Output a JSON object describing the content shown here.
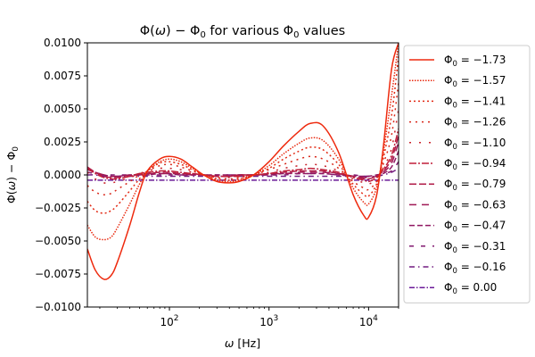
{
  "chart_data": {
    "type": "line",
    "title": "Φ(ω) − Φ₀ for various Φ₀ values",
    "title_parts": {
      "before": "Φ(",
      "omega": "ω",
      "mid": ") − Φ",
      "sub": "0",
      "after": " for various Φ",
      "sub2": "0",
      "tail": " values"
    },
    "xlabel": "ω [Hz]",
    "ylabel": "Φ(ω) − Φ₀",
    "x_scale": "log",
    "xlim": [
      15,
      20000
    ],
    "ylim": [
      -0.01,
      0.01
    ],
    "x_ticks": [
      {
        "value": 100,
        "base": "10",
        "exp": "2"
      },
      {
        "value": 1000,
        "base": "10",
        "exp": "3"
      },
      {
        "value": 10000,
        "base": "10",
        "exp": "4"
      }
    ],
    "y_ticks": [
      "-0.0100",
      "-0.0075",
      "-0.0050",
      "-0.0025",
      "0.0000",
      "0.0025",
      "0.0050",
      "0.0075",
      "0.0100"
    ],
    "grid": false,
    "legend_position": "outside-right",
    "x": [
      15,
      18,
      22,
      26,
      30,
      40,
      50,
      60,
      80,
      100,
      130,
      170,
      220,
      300,
      400,
      500,
      700,
      1000,
      1400,
      2000,
      2600,
      3500,
      5000,
      7000,
      9000,
      10000,
      12000,
      14000,
      17000,
      20000
    ],
    "series": [
      {
        "name": "Φ₀ = −1.73",
        "name_base": "Φ",
        "name_sub": "0",
        "name_value": " = −1.73",
        "color": "#ee2a0e",
        "dash": "",
        "values": [
          -0.0056,
          -0.0072,
          -0.0079,
          -0.0076,
          -0.0066,
          -0.0038,
          -0.0013,
          0.0003,
          0.0012,
          0.0014,
          0.0012,
          0.0006,
          0.0,
          -0.0005,
          -0.0006,
          -0.0005,
          0.0,
          0.001,
          0.0022,
          0.0033,
          0.0039,
          0.0037,
          0.0017,
          -0.0015,
          -0.0031,
          -0.0032,
          -0.0016,
          0.002,
          0.008,
          0.01
        ]
      },
      {
        "name": "Φ₀ = −1.57",
        "name_base": "Φ",
        "name_sub": "0",
        "name_value": " = −1.57",
        "color": "#e8290f",
        "dash": "1.5,1.5",
        "values": [
          -0.0038,
          -0.0047,
          -0.0049,
          -0.0047,
          -0.004,
          -0.0022,
          -0.0007,
          0.0003,
          0.001,
          0.0012,
          0.001,
          0.0005,
          0.0,
          -0.0004,
          -0.0005,
          -0.0004,
          0.0,
          0.0007,
          0.0016,
          0.0024,
          0.0028,
          0.0026,
          0.0012,
          -0.001,
          -0.0021,
          -0.0022,
          -0.001,
          0.0016,
          0.006,
          0.01
        ]
      },
      {
        "name": "Φ₀ = −1.41",
        "name_base": "Φ",
        "name_sub": "0",
        "name_value": " = −1.41",
        "color": "#e22a14",
        "dash": "2,3",
        "values": [
          -0.002,
          -0.0027,
          -0.0029,
          -0.0027,
          -0.0023,
          -0.0012,
          -0.0003,
          0.0003,
          0.0009,
          0.001,
          0.0008,
          0.0004,
          0.0,
          -0.0003,
          -0.0004,
          -0.0003,
          0.0,
          0.0005,
          0.0012,
          0.0018,
          0.0021,
          0.0019,
          0.0008,
          -0.0007,
          -0.0015,
          -0.0016,
          -0.0007,
          0.0012,
          0.0045,
          0.009
        ]
      },
      {
        "name": "Φ₀ = −1.26",
        "name_base": "Φ",
        "name_sub": "0",
        "name_value": " = −1.26",
        "color": "#d8271a",
        "dash": "2,5",
        "values": [
          -0.0008,
          -0.0013,
          -0.0015,
          -0.0014,
          -0.0011,
          -0.0005,
          0.0,
          0.0003,
          0.0007,
          0.0008,
          0.0006,
          0.0003,
          0.0,
          -0.0002,
          -0.0003,
          -0.0002,
          0.0,
          0.0004,
          0.0008,
          0.0012,
          0.0014,
          0.0012,
          0.0005,
          -0.0005,
          -0.001,
          -0.0011,
          -0.0005,
          0.0008,
          0.003,
          0.007
        ]
      },
      {
        "name": "Φ₀ = −1.10",
        "name_base": "Φ",
        "name_sub": "0",
        "name_value": " = −1.10",
        "color": "#c9222a",
        "dash": "2,9",
        "values": [
          0.0002,
          -0.0003,
          -0.0006,
          -0.0006,
          -0.0005,
          -0.0002,
          0.0001,
          0.0003,
          0.0005,
          0.0005,
          0.0004,
          0.0002,
          0.0,
          -0.0002,
          -0.0002,
          -0.0001,
          0.0,
          0.0002,
          0.0005,
          0.0007,
          0.0008,
          0.0007,
          0.0003,
          -0.0003,
          -0.0006,
          -0.0007,
          -0.0003,
          0.0005,
          0.002,
          0.005
        ]
      },
      {
        "name": "Φ₀ = −0.94",
        "name_base": "Φ",
        "name_sub": "0",
        "name_value": " = −0.94",
        "color": "#c01f3a",
        "dash": "8,2,2,2",
        "values": [
          0.0005,
          0.0001,
          -0.0002,
          -0.0003,
          -0.0003,
          -0.0001,
          0.0001,
          0.0002,
          0.0003,
          0.0003,
          0.0002,
          0.0001,
          0.0,
          -0.0001,
          -0.0001,
          -0.0001,
          0.0,
          0.0001,
          0.0003,
          0.0004,
          0.0005,
          0.0004,
          0.0002,
          -0.0002,
          -0.0004,
          -0.0005,
          -0.0002,
          0.0004,
          0.0015,
          0.0035
        ]
      },
      {
        "name": "Φ₀ = −0.79",
        "name_base": "Φ",
        "name_sub": "0",
        "name_value": " = −0.79",
        "color": "#b01c48",
        "dash": "8,3",
        "values": [
          0.0006,
          0.0002,
          -0.0001,
          -0.0002,
          -0.0002,
          -0.0001,
          0.0001,
          0.0001,
          0.0002,
          0.0002,
          0.0001,
          0.0001,
          0.0,
          -0.0001,
          -0.0001,
          0.0,
          0.0,
          0.0001,
          0.0002,
          0.0003,
          0.0003,
          0.0003,
          0.0001,
          -0.0001,
          -0.0003,
          -0.0003,
          -0.0001,
          0.0003,
          0.0012,
          0.003
        ]
      },
      {
        "name": "Φ₀ = −0.63",
        "name_base": "Φ",
        "name_sub": "0",
        "name_value": " = −0.63",
        "color": "#a01955",
        "dash": "8,6",
        "values": [
          0.0005,
          0.0002,
          0.0,
          -0.0001,
          -0.0001,
          0.0,
          0.0,
          0.0001,
          0.0001,
          0.0001,
          0.0001,
          0.0,
          0.0,
          -0.0001,
          -0.0001,
          0.0,
          0.0,
          0.0001,
          0.0001,
          0.0002,
          0.0002,
          0.0002,
          0.0001,
          -0.0001,
          -0.0002,
          -0.0002,
          -0.0001,
          0.0002,
          0.0009,
          0.0025
        ]
      },
      {
        "name": "Φ₀ = −0.47",
        "name_base": "Φ",
        "name_sub": "0",
        "name_value": " = −0.47",
        "color": "#901862",
        "dash": "6,3",
        "values": [
          0.0004,
          0.0002,
          0.0,
          -0.0001,
          -0.0001,
          0.0,
          0.0,
          0.0,
          0.0001,
          0.0001,
          0.0,
          0.0,
          0.0,
          0.0,
          0.0,
          0.0,
          0.0,
          0.0,
          0.0001,
          0.0001,
          0.0001,
          0.0001,
          0.0,
          -0.0001,
          -0.0001,
          -0.0001,
          0.0,
          0.0001,
          0.0006,
          0.0018
        ]
      },
      {
        "name": "Φ₀ = −0.31",
        "name_base": "Φ",
        "name_sub": "0",
        "name_value": " = −0.31",
        "color": "#821a70",
        "dash": "5,8",
        "values": [
          0.0002,
          0.0001,
          0.0,
          0.0,
          0.0,
          0.0,
          0.0,
          0.0,
          0.0,
          0.0,
          0.0,
          0.0,
          0.0,
          0.0,
          0.0,
          0.0,
          0.0,
          0.0,
          0.0,
          0.0001,
          0.0001,
          0.0001,
          0.0,
          0.0,
          -0.0001,
          -0.0001,
          0.0,
          0.0001,
          0.0003,
          0.001
        ]
      },
      {
        "name": "Φ₀ = −0.16",
        "name_base": "Φ",
        "name_sub": "0",
        "name_value": " = −0.16",
        "color": "#721c80",
        "dash": "6,4,1.5,4",
        "values": [
          0.0,
          0.0,
          -0.0001,
          -0.0001,
          -0.0001,
          -0.0001,
          -0.0001,
          -0.0001,
          -0.0001,
          -0.0001,
          -0.0001,
          -0.0001,
          -0.0001,
          -0.0001,
          -0.0001,
          -0.0001,
          -0.0001,
          -0.0001,
          -0.0001,
          -0.0001,
          -0.0001,
          -0.0001,
          -0.0001,
          -0.0001,
          -0.0001,
          -0.0001,
          -0.0001,
          0.0,
          0.0002,
          0.0005
        ]
      },
      {
        "name": "Φ₀ = 0.00",
        "name_base": "Φ",
        "name_sub": "0",
        "name_value": " = 0.00",
        "color": "#6a1a98",
        "dash": "6,2,1.5,2",
        "values": [
          -0.0004,
          -0.0004,
          -0.0004,
          -0.0004,
          -0.0004,
          -0.0004,
          -0.0004,
          -0.0004,
          -0.0004,
          -0.0004,
          -0.0004,
          -0.0004,
          -0.0004,
          -0.0004,
          -0.0004,
          -0.0004,
          -0.0004,
          -0.0004,
          -0.0004,
          -0.0004,
          -0.0004,
          -0.0004,
          -0.0004,
          -0.0004,
          -0.0004,
          -0.0004,
          -0.0004,
          -0.0004,
          -0.0004,
          -0.0004
        ]
      }
    ]
  }
}
